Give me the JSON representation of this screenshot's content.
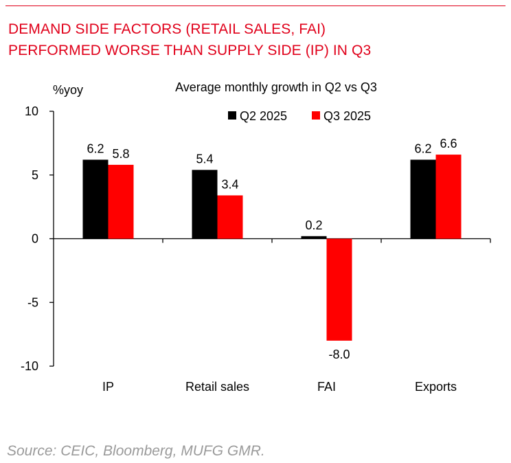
{
  "header": {
    "title_line1": "DEMAND SIDE FACTORS (RETAIL SALES, FAI)",
    "title_line2": "PERFORMED WORSE THAN SUPPLY SIDE (IP) IN Q3",
    "title_color": "#e0001a"
  },
  "chart_data": {
    "type": "bar",
    "title": "Average monthly growth in Q2 vs Q3",
    "ylabel": "%yoy",
    "xlabel": "",
    "ylim": [
      -10,
      10
    ],
    "yticks": [
      10,
      5,
      0,
      -5,
      -10
    ],
    "categories": [
      "IP",
      "Retail sales",
      "FAI",
      "Exports"
    ],
    "series": [
      {
        "name": "Q2 2025",
        "color": "#000000",
        "values": [
          6.2,
          5.4,
          0.2,
          6.2
        ],
        "labels": [
          "6.2",
          "5.4",
          "0.2",
          "6.2"
        ]
      },
      {
        "name": "Q3 2025",
        "color": "#ff0000",
        "values": [
          5.8,
          3.4,
          -8.0,
          6.6
        ],
        "labels": [
          "5.8",
          "3.4",
          "-8.0",
          "6.6"
        ]
      }
    ],
    "legend": "top-right",
    "grid": false
  },
  "footer": {
    "source": "Source: CEIC, Bloomberg, MUFG GMR."
  }
}
